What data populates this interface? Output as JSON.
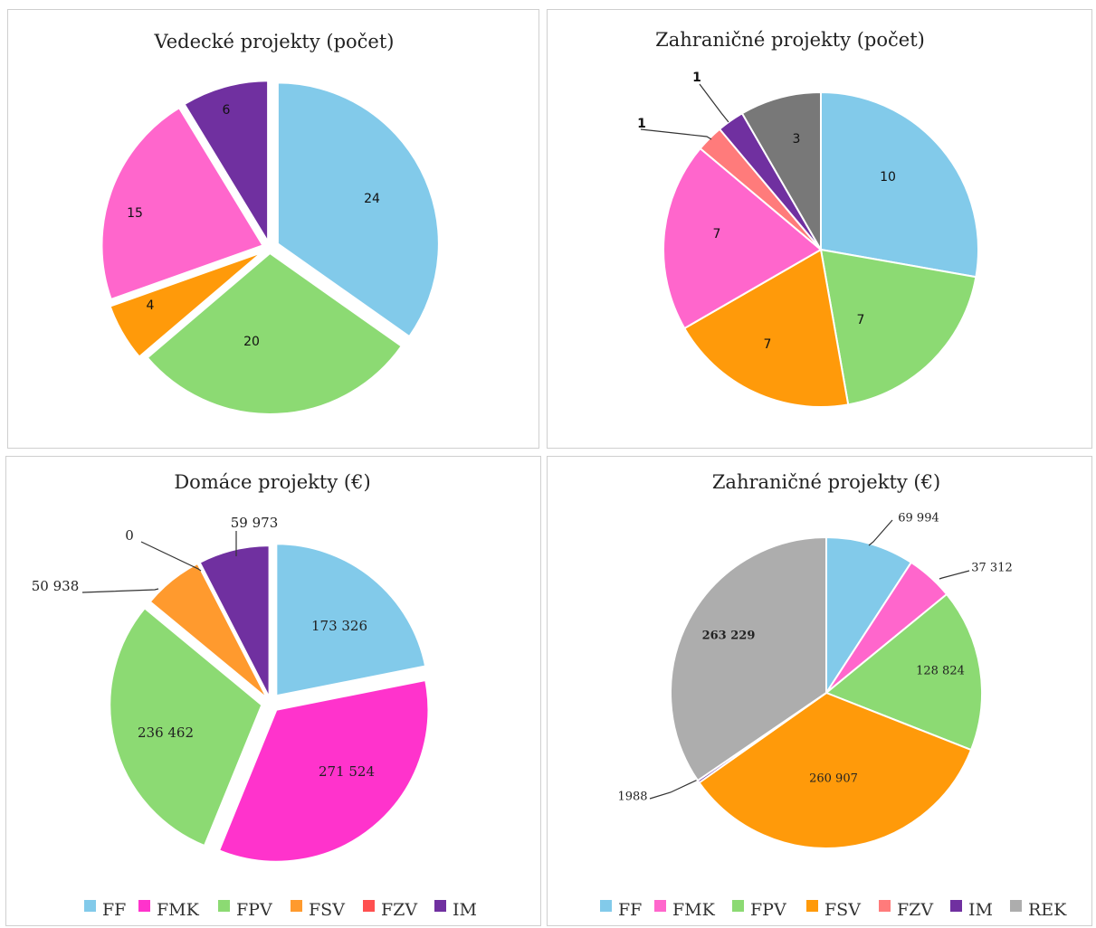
{
  "chart_data": [
    {
      "type": "pie",
      "title": "Vedecké projekty (počet)",
      "slices": [
        {
          "label": "FF",
          "value": 24,
          "display": "24",
          "color": "#82CAEA"
        },
        {
          "label": "FPV",
          "value": 20,
          "display": "20",
          "color": "#8CDA73"
        },
        {
          "label": "FSV",
          "value": 4,
          "display": "4",
          "color": "#FF9A0A"
        },
        {
          "label": "FMK",
          "value": 15,
          "display": "15",
          "color": "#FF66CC"
        },
        {
          "label": "IM",
          "value": 6,
          "display": "6",
          "color": "#7030A0",
          "label_color": "#ffffff"
        }
      ]
    },
    {
      "type": "pie",
      "title": "Zahraničné projekty (počet)",
      "slices": [
        {
          "label": "FF",
          "value": 10,
          "display": "10",
          "color": "#82CAEA"
        },
        {
          "label": "FPV",
          "value": 7,
          "display": "7",
          "color": "#8CDA73"
        },
        {
          "label": "FSV",
          "value": 7,
          "display": "7",
          "color": "#FF9A0A"
        },
        {
          "label": "FMK",
          "value": 7,
          "display": "7",
          "color": "#FF66CC"
        },
        {
          "label": "FZV",
          "value": 1,
          "display": "1",
          "color": "#FF7B7B"
        },
        {
          "label": "IM",
          "value": 1,
          "display": "1",
          "color": "#7030A0"
        },
        {
          "label": "REK",
          "value": 3,
          "display": "3",
          "color": "#787878",
          "label_color": "#ffffff"
        }
      ]
    },
    {
      "type": "pie",
      "title": "Domáce projekty (€)",
      "slices": [
        {
          "label": "FF",
          "value": 173326,
          "display": "173 326",
          "color": "#82CAEA"
        },
        {
          "label": "FMK",
          "value": 271524,
          "display": "271 524",
          "color": "#FF33CC"
        },
        {
          "label": "FPV",
          "value": 236462,
          "display": "236 462",
          "color": "#8CDA73"
        },
        {
          "label": "FSV",
          "value": 50938,
          "display": "50 938",
          "color": "#FF9A2E"
        },
        {
          "label": "FZV",
          "value": 0,
          "display": "0",
          "color": "#FF5050"
        },
        {
          "label": "IM",
          "value": 59973,
          "display": "59 973",
          "color": "#7030A0"
        }
      ],
      "legend": [
        "FF",
        "FMK",
        "FPV",
        "FSV",
        "FZV",
        "IM"
      ],
      "legend_colors": [
        "#82CAEA",
        "#FF33CC",
        "#8CDA73",
        "#FF9A2E",
        "#FF5050",
        "#7030A0"
      ],
      "legend_position": "bottom"
    },
    {
      "type": "pie",
      "title": "Zahraničné projekty (€)",
      "slices": [
        {
          "label": "FF",
          "value": 69994,
          "display": "69 994",
          "color": "#82CAEA"
        },
        {
          "label": "FMK",
          "value": 37312,
          "display": "37 312",
          "color": "#FF66CC"
        },
        {
          "label": "FPV",
          "value": 128824,
          "display": "128 824",
          "color": "#8CDA73"
        },
        {
          "label": "FSV",
          "value": 260907,
          "display": "260 907",
          "color": "#FF9A0A"
        },
        {
          "label": "IM",
          "value": 1988,
          "display": "1988",
          "color": "#7030A0"
        },
        {
          "label": "REK",
          "value": 263229,
          "display": "263 229",
          "color": "#ADADAD",
          "label_color": "#ffffff"
        }
      ],
      "legend": [
        "FF",
        "FMK",
        "FPV",
        "FSV",
        "FZV",
        "IM",
        "REK"
      ],
      "legend_colors": [
        "#82CAEA",
        "#FF66CC",
        "#8CDA73",
        "#FF9A0A",
        "#FF7B7B",
        "#7030A0",
        "#ADADAD"
      ],
      "legend_position": "bottom"
    }
  ]
}
